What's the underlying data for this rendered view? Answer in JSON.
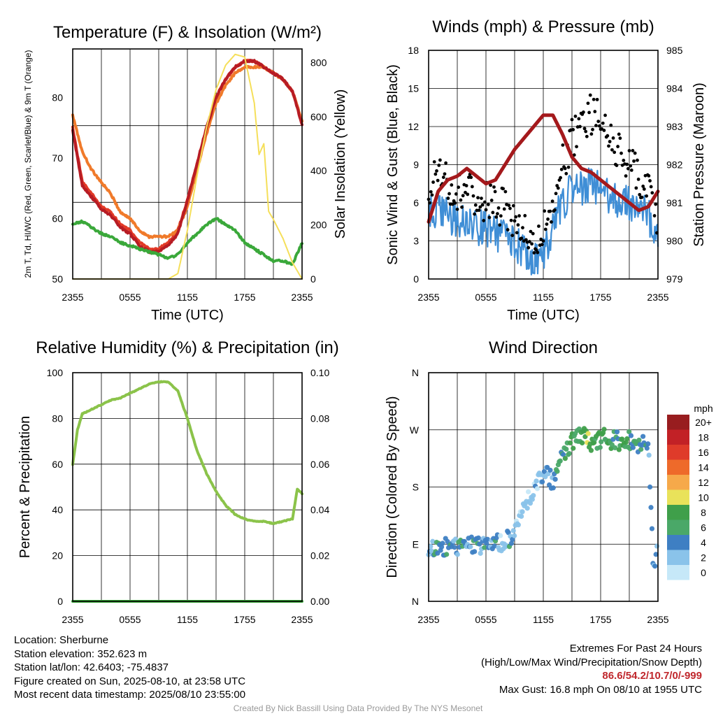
{
  "chart_data": [
    {
      "type": "line",
      "title": "Temperature (F) & Insolation (W/m²)",
      "xlabel": "Time (UTC)",
      "ylabel": "2m T, Td, HI/WC (Red, Green, Scarlet/Blue) & 9m T (Orange)",
      "y2label": "Solar Insolation (Yellow)",
      "ylim": [
        50,
        88
      ],
      "y2lim": [
        0,
        850
      ],
      "xticks": [
        "2355",
        "0555",
        "1155",
        "1755",
        "2355"
      ],
      "yticks": [
        50,
        60,
        70,
        80
      ],
      "y2ticks": [
        0,
        200,
        400,
        600,
        800
      ],
      "grid": true,
      "series": [
        {
          "name": "2m T",
          "color": "#e23a27",
          "axis": "left",
          "x": [
            0,
            1,
            2,
            3,
            4,
            5,
            6,
            7,
            8,
            9,
            10,
            11,
            12,
            13,
            14,
            15,
            16,
            17,
            18,
            19,
            20,
            21,
            22,
            23,
            24
          ],
          "y": [
            75,
            66,
            64,
            62,
            61,
            59,
            58,
            56,
            55,
            55,
            56,
            58,
            63,
            69,
            75,
            80,
            83,
            85,
            86,
            86,
            85,
            84,
            83,
            81,
            76
          ]
        },
        {
          "name": "9m T",
          "color": "#f07a2a",
          "axis": "left",
          "x": [
            0,
            1,
            2,
            3,
            4,
            5,
            6,
            7,
            8,
            9,
            10,
            11,
            12,
            13,
            14,
            15,
            16,
            17,
            18,
            19,
            20,
            21,
            22,
            23,
            24
          ],
          "y": [
            77,
            71,
            68,
            66,
            64,
            61,
            60,
            58,
            57,
            57,
            57,
            58,
            62,
            68,
            74,
            79,
            82,
            84,
            85,
            85,
            85,
            84,
            83,
            81,
            76
          ]
        },
        {
          "name": "HI/WC",
          "color": "#b71c24",
          "axis": "left",
          "x": [
            0,
            1,
            2,
            3,
            4,
            5,
            6,
            7,
            8,
            9,
            10,
            11,
            12,
            13,
            14,
            15,
            16,
            17,
            18,
            19,
            20,
            21,
            22,
            23,
            24
          ],
          "y": [
            74.5,
            65.5,
            63.5,
            61.5,
            60.5,
            58.5,
            57.5,
            55.5,
            54.5,
            54.5,
            55.5,
            57.5,
            63,
            69,
            75,
            80,
            83,
            85,
            86,
            86,
            85,
            84,
            83,
            81,
            75.5
          ]
        },
        {
          "name": "Td",
          "color": "#3aa83a",
          "axis": "left",
          "x": [
            0,
            1,
            2,
            3,
            4,
            5,
            6,
            7,
            8,
            9,
            10,
            11,
            12,
            13,
            14,
            15,
            16,
            17,
            18,
            19,
            20,
            21,
            22,
            23,
            24
          ],
          "y": [
            59,
            59.5,
            58.5,
            57.5,
            57,
            56,
            55.5,
            55,
            54.5,
            54,
            53.5,
            54,
            56,
            57.5,
            59,
            60,
            59,
            58,
            56,
            55,
            54,
            53,
            53,
            52.5,
            56
          ]
        },
        {
          "name": "Solar Insolation",
          "color": "#f5df5a",
          "axis": "right",
          "x": [
            0,
            1,
            2,
            3,
            4,
            5,
            6,
            7,
            8,
            9,
            10,
            11,
            12,
            13,
            14,
            15,
            16,
            17,
            18,
            19,
            19.5,
            20,
            20.5,
            21,
            22,
            23,
            24
          ],
          "y": [
            0,
            0,
            0,
            0,
            0,
            0,
            0,
            0,
            0,
            0,
            0,
            20,
            180,
            380,
            560,
            700,
            790,
            830,
            820,
            650,
            460,
            500,
            250,
            220,
            150,
            60,
            0
          ]
        }
      ]
    },
    {
      "type": "line",
      "title": "Winds (mph) & Pressure (mb)",
      "xlabel": "Time (UTC)",
      "ylabel": "Sonic Wind & Gust (Blue, Black)",
      "y2label": "Station Pressure (Maroon)",
      "ylim": [
        0,
        18
      ],
      "y2lim": [
        979,
        985
      ],
      "xticks": [
        "2355",
        "0555",
        "1155",
        "1755",
        "2355"
      ],
      "yticks": [
        0,
        3,
        6,
        9,
        12,
        15,
        18
      ],
      "y2ticks": [
        979,
        980,
        981,
        982,
        983,
        984,
        985
      ],
      "grid": true,
      "series": [
        {
          "name": "Sonic Wind",
          "color": "#3f8ed6",
          "axis": "left",
          "x": [
            0,
            1,
            2,
            3,
            4,
            5,
            6,
            7,
            8,
            9,
            10,
            11,
            12,
            13,
            14,
            15,
            16,
            17,
            18,
            19,
            20,
            21,
            22,
            23,
            24
          ],
          "y": [
            5,
            5.5,
            5,
            4.5,
            4.5,
            4,
            4,
            3.5,
            3.5,
            3,
            2,
            1.5,
            2,
            4,
            6,
            7,
            7,
            7.5,
            7,
            6.5,
            6,
            6,
            5.5,
            5,
            3
          ]
        },
        {
          "name": "Gust",
          "color": "#000000",
          "axis": "left",
          "x": [
            0,
            1,
            2,
            3,
            4,
            5,
            6,
            7,
            8,
            9,
            10,
            11,
            12,
            13,
            14,
            15,
            16,
            17,
            18,
            19,
            20,
            21,
            22,
            23,
            24
          ],
          "y": [
            7.5,
            8,
            7.5,
            7,
            7,
            6.5,
            6,
            6,
            5.5,
            4.5,
            3.5,
            3,
            3.5,
            6,
            9,
            11,
            12,
            13,
            12.5,
            11,
            10,
            9,
            8,
            7,
            4
          ]
        },
        {
          "name": "Station Pressure",
          "color": "#a4191c",
          "axis": "right",
          "x": [
            0,
            1,
            2,
            3,
            4,
            5,
            6,
            7,
            8,
            9,
            10,
            11,
            12,
            13,
            14,
            15,
            16,
            17,
            18,
            19,
            20,
            21,
            22,
            23,
            24
          ],
          "y": [
            980.5,
            981.3,
            981.6,
            981.7,
            981.9,
            981.7,
            981.5,
            981.6,
            982.0,
            982.4,
            982.7,
            983.0,
            983.3,
            983.3,
            982.8,
            982.2,
            981.9,
            981.8,
            981.6,
            981.4,
            981.2,
            981.0,
            980.8,
            980.9,
            981.3
          ]
        }
      ]
    },
    {
      "type": "line",
      "title": "Relative Humidity (%) & Precipitation (in)",
      "ylabel": "Percent & Precipitation",
      "ylim": [
        0,
        100
      ],
      "y2lim": [
        0,
        0.1
      ],
      "xticks": [
        "2355",
        "0555",
        "1155",
        "1755",
        "2355"
      ],
      "yticks": [
        0,
        20,
        40,
        60,
        80,
        100
      ],
      "y2ticks": [
        "0.00",
        "0.02",
        "0.04",
        "0.06",
        "0.08",
        "0.10"
      ],
      "grid": true,
      "series": [
        {
          "name": "Relative Humidity",
          "color": "#8bc34a",
          "axis": "left",
          "x": [
            0,
            0.5,
            1,
            2,
            3,
            4,
            5,
            6,
            7,
            8,
            9,
            10,
            11,
            12,
            13,
            14,
            15,
            16,
            17,
            18,
            19,
            20,
            21,
            22,
            23,
            23.5,
            24
          ],
          "y": [
            60,
            75,
            82,
            84,
            86,
            88,
            89,
            91,
            93,
            95,
            96,
            96,
            92,
            80,
            66,
            56,
            48,
            42,
            38,
            36,
            35,
            35,
            34,
            35,
            36,
            49,
            47
          ]
        },
        {
          "name": "Precipitation",
          "color": "#3aa83a",
          "axis": "right",
          "x": [
            0,
            24
          ],
          "y": [
            0,
            0
          ]
        }
      ]
    },
    {
      "type": "scatter",
      "title": "Wind Direction",
      "ylabel": "Direction (Colored By Speed)",
      "xticks": [
        "2355",
        "0555",
        "1155",
        "1755",
        "2355"
      ],
      "yticks": [
        "N",
        "E",
        "S",
        "W",
        "N"
      ],
      "ylim": [
        0,
        360
      ],
      "grid": true,
      "colorbar": {
        "label": "mph",
        "ticks": [
          "0",
          "2",
          "4",
          "6",
          "8",
          "10",
          "12",
          "14",
          "16",
          "18",
          "20+"
        ],
        "colors": [
          "#c6e8f8",
          "#8ac3ea",
          "#3e7fc3",
          "#4aa868",
          "#3f9f4a",
          "#e9e25a",
          "#f6a94a",
          "#ee6a2a",
          "#df3b2a",
          "#c22126",
          "#981d1f"
        ]
      },
      "points": {
        "x": [
          0,
          0.5,
          1,
          1.5,
          2,
          2.5,
          3,
          3.5,
          4,
          4.5,
          5,
          5.5,
          6,
          6.5,
          7,
          7.5,
          8,
          8.5,
          9,
          9.5,
          10,
          10.5,
          11,
          11.5,
          12,
          12.5,
          13,
          13.5,
          14,
          14.5,
          15,
          15.5,
          16,
          16.5,
          17,
          17.5,
          18,
          18.5,
          19,
          19.5,
          20,
          20.5,
          21,
          21.5,
          22,
          22.5,
          23,
          23.5,
          24
        ],
        "dir": [
          82,
          85,
          86,
          84,
          88,
          87,
          85,
          86,
          89,
          88,
          86,
          90,
          88,
          92,
          90,
          93,
          95,
          100,
          115,
          125,
          150,
          160,
          175,
          190,
          195,
          200,
          185,
          205,
          230,
          240,
          250,
          255,
          262,
          258,
          245,
          250,
          255,
          260,
          245,
          255,
          250,
          248,
          255,
          245,
          250,
          255,
          250,
          60,
          80
        ],
        "speed": [
          2,
          4,
          6,
          3,
          5,
          4,
          3,
          6,
          2,
          4,
          5,
          3,
          4,
          3,
          5,
          2,
          3,
          4,
          2,
          1,
          2,
          1,
          2,
          1,
          3,
          4,
          3,
          6,
          5,
          7,
          8,
          6,
          7,
          9,
          8,
          7,
          6,
          8,
          7,
          5,
          6,
          7,
          6,
          5,
          6,
          5,
          4,
          3,
          4
        ]
      }
    }
  ],
  "footer": {
    "location": "Location: Sherburne",
    "elevation": "Station elevation: 352.623 m",
    "latlon": "Station lat/lon: 42.6403; -75.4837",
    "created": "Figure created on Sun, 2025-08-10, at 23:58 UTC",
    "recent": "Most recent data timestamp: 2025/08/10 23:55:00",
    "extremes_title": "Extremes For Past 24 Hours",
    "extremes_desc": "(High/Low/Max Wind/Precipitation/Snow Depth)",
    "extremes_values": "86.6/54.2/10.7/0/-999",
    "max_gust": "Max Gust: 16.8 mph On 08/10 at 1955 UTC",
    "credit": "Created By Nick Bassill Using Data Provided By The NYS Mesonet"
  }
}
